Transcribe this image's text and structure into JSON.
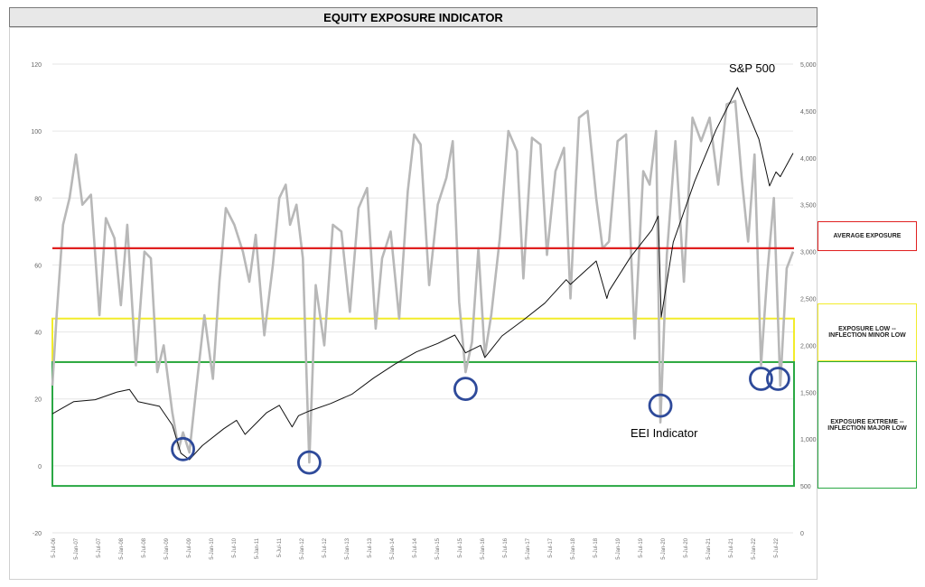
{
  "title": "EQUITY EXPOSURE INDICATOR",
  "annotations": {
    "sp500": "S&P 500",
    "eei": "EEI Indicator"
  },
  "zones": {
    "average": "AVERAGE EXPOSURE",
    "low": "EXPOSURE LOW -- INFLECTION MINOR LOW",
    "extreme": "EXPOSURE EXTREME -- INFLECTION MAJOR LOW"
  },
  "colors": {
    "eei_line": "#b8b8b8",
    "sp500_line": "#111111",
    "average_line": "#e02020",
    "low_zone": "#f2ec2a",
    "extreme_zone": "#2aa844",
    "circles": "#2e4a9a",
    "grid": "#e6e6e6"
  },
  "chart_data": {
    "type": "line",
    "title": "EQUITY EXPOSURE INDICATOR",
    "grid": true,
    "x_ticks": [
      "5-Jul-06",
      "5-Jan-07",
      "5-Jul-07",
      "5-Jan-08",
      "5-Jul-08",
      "5-Jan-09",
      "5-Jul-09",
      "5-Jan-10",
      "5-Jul-10",
      "5-Jan-11",
      "5-Jul-11",
      "5-Jan-12",
      "5-Jul-12",
      "5-Jan-13",
      "5-Jul-13",
      "5-Jan-14",
      "5-Jul-14",
      "5-Jan-15",
      "5-Jul-15",
      "5-Jan-16",
      "5-Jul-16",
      "5-Jan-17",
      "5-Jul-17",
      "5-Jan-18",
      "5-Jul-18",
      "5-Jan-19",
      "5-Jul-19",
      "5-Jan-20",
      "5-Jul-20",
      "5-Jan-21",
      "5-Jul-21",
      "5-Jan-22",
      "5-Jul-22"
    ],
    "y_left": {
      "ticks": [
        -20,
        0,
        20,
        40,
        60,
        80,
        100,
        120
      ],
      "ylim": [
        -20,
        120
      ]
    },
    "y_right": {
      "ticks": [
        0,
        500,
        1000,
        1500,
        2000,
        2500,
        3000,
        3500,
        4000,
        4500,
        5000
      ],
      "tick_labels": [
        "0",
        "500",
        "1,000",
        "1,500",
        "2,000",
        "2,500",
        "3,000",
        "3,500",
        "4,000",
        "4,500",
        "5,000"
      ],
      "ylim": [
        0,
        5000
      ]
    },
    "reference_lines": {
      "average_exposure": 65,
      "low_band": [
        31,
        44
      ],
      "extreme_band": [
        -6,
        31
      ]
    },
    "series": [
      {
        "name": "S&P 500",
        "axis": "right",
        "x": [
          2006.0,
          2006.5,
          2007.0,
          2007.5,
          2007.8,
          2008.0,
          2008.5,
          2008.8,
          2009.0,
          2009.2,
          2009.5,
          2010.0,
          2010.3,
          2010.5,
          2011.0,
          2011.3,
          2011.6,
          2011.75,
          2012.0,
          2012.5,
          2013.0,
          2013.5,
          2014.0,
          2014.5,
          2015.0,
          2015.4,
          2015.65,
          2016.0,
          2016.1,
          2016.5,
          2017.0,
          2017.5,
          2018.0,
          2018.1,
          2018.7,
          2018.95,
          2019.0,
          2019.5,
          2020.0,
          2020.15,
          2020.22,
          2020.5,
          2021.0,
          2021.5,
          2022.0,
          2022.5,
          2022.75,
          2022.9,
          2023.0,
          2023.3
        ],
        "values": [
          1270,
          1400,
          1420,
          1500,
          1530,
          1400,
          1350,
          1150,
          850,
          780,
          930,
          1110,
          1200,
          1050,
          1280,
          1360,
          1130,
          1250,
          1300,
          1380,
          1480,
          1650,
          1800,
          1930,
          2020,
          2110,
          1920,
          2000,
          1870,
          2100,
          2270,
          2450,
          2700,
          2650,
          2900,
          2500,
          2580,
          2940,
          3230,
          3380,
          2300,
          3100,
          3750,
          4300,
          4750,
          4200,
          3700,
          3850,
          3800,
          4050
        ]
      },
      {
        "name": "EEI Indicator",
        "axis": "left",
        "x": [
          2006.0,
          2006.1,
          2006.25,
          2006.4,
          2006.55,
          2006.7,
          2006.9,
          2007.1,
          2007.25,
          2007.45,
          2007.6,
          2007.75,
          2007.95,
          2008.15,
          2008.3,
          2008.45,
          2008.6,
          2008.8,
          2008.95,
          2009.05,
          2009.2,
          2009.35,
          2009.55,
          2009.75,
          2009.9,
          2010.05,
          2010.25,
          2010.45,
          2010.6,
          2010.75,
          2010.95,
          2011.15,
          2011.3,
          2011.45,
          2011.55,
          2011.7,
          2011.85,
          2012.0,
          2012.15,
          2012.35,
          2012.55,
          2012.75,
          2012.95,
          2013.15,
          2013.35,
          2013.55,
          2013.7,
          2013.9,
          2014.1,
          2014.3,
          2014.45,
          2014.6,
          2014.8,
          2015.0,
          2015.2,
          2015.35,
          2015.5,
          2015.65,
          2015.8,
          2015.95,
          2016.1,
          2016.25,
          2016.45,
          2016.65,
          2016.85,
          2017.0,
          2017.2,
          2017.4,
          2017.55,
          2017.75,
          2017.95,
          2018.1,
          2018.3,
          2018.5,
          2018.7,
          2018.85,
          2019.0,
          2019.2,
          2019.4,
          2019.6,
          2019.8,
          2019.95,
          2020.1,
          2020.2,
          2020.35,
          2020.55,
          2020.75,
          2020.95,
          2021.15,
          2021.35,
          2021.55,
          2021.75,
          2021.95,
          2022.1,
          2022.25,
          2022.4,
          2022.55,
          2022.7,
          2022.85,
          2023.0,
          2023.15,
          2023.3
        ],
        "values": [
          24,
          45,
          72,
          80,
          93,
          78,
          81,
          45,
          74,
          68,
          48,
          72,
          30,
          64,
          62,
          28,
          36,
          16,
          5,
          10,
          4,
          22,
          45,
          26,
          55,
          77,
          72,
          64,
          55,
          69,
          39,
          60,
          80,
          84,
          72,
          78,
          62,
          1,
          54,
          36,
          72,
          70,
          46,
          77,
          83,
          41,
          62,
          70,
          44,
          82,
          99,
          96,
          54,
          78,
          86,
          97,
          49,
          28,
          37,
          65,
          33,
          45,
          68,
          100,
          94,
          56,
          98,
          96,
          63,
          88,
          95,
          50,
          104,
          106,
          80,
          65,
          67,
          97,
          99,
          38,
          88,
          84,
          100,
          13,
          63,
          97,
          55,
          104,
          97,
          104,
          84,
          108,
          109,
          86,
          67,
          93,
          30,
          58,
          80,
          24,
          59,
          64
        ]
      }
    ]
  }
}
